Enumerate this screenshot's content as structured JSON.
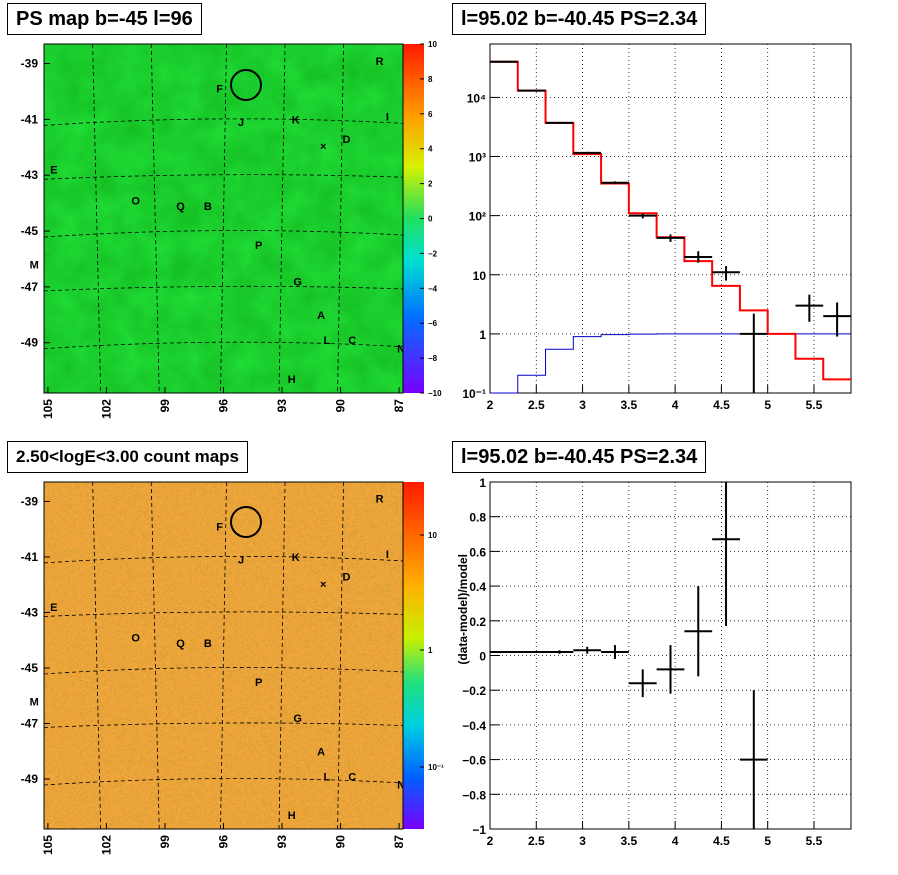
{
  "panels": {
    "top_left_title": "PS map b=-45 l=96",
    "top_right_title": "l=95.02 b=-40.45 PS=2.34",
    "bottom_left_title": "2.50<logE<3.00 count maps",
    "bottom_right_title": "l=95.02 b=-40.45 PS=2.34"
  },
  "map": {
    "y_ticks": [
      "-39",
      "-41",
      "-43",
      "-45",
      "-47",
      "-49"
    ],
    "x_ticks": [
      "105",
      "102",
      "99",
      "96",
      "93",
      "90",
      "87"
    ],
    "sources": [
      {
        "label": "R",
        "l": 88.0,
        "b": -38.9
      },
      {
        "label": "F",
        "l": 96.2,
        "b": -39.9
      },
      {
        "label": "J",
        "l": 95.1,
        "b": -41.1
      },
      {
        "label": "K",
        "l": 92.3,
        "b": -41.0
      },
      {
        "label": "I",
        "l": 87.6,
        "b": -40.9
      },
      {
        "label": "D",
        "l": 89.7,
        "b": -41.7
      },
      {
        "label": "E",
        "l": 104.7,
        "b": -42.8
      },
      {
        "label": "O",
        "l": 100.5,
        "b": -43.9
      },
      {
        "label": "Q",
        "l": 98.2,
        "b": -44.1
      },
      {
        "label": "B",
        "l": 96.8,
        "b": -44.1
      },
      {
        "label": "P",
        "l": 94.2,
        "b": -45.5
      },
      {
        "label": "M",
        "l": 105.7,
        "b": -46.2
      },
      {
        "label": "G",
        "l": 92.2,
        "b": -46.8
      },
      {
        "label": "A",
        "l": 91.0,
        "b": -48.0
      },
      {
        "label": "L",
        "l": 90.7,
        "b": -48.9
      },
      {
        "label": "C",
        "l": 89.4,
        "b": -48.9
      },
      {
        "label": "N",
        "l": 86.9,
        "b": -49.2
      },
      {
        "label": "H",
        "l": 92.5,
        "b": -50.3
      }
    ],
    "ps_colorbar_ticks": [
      "10",
      "8",
      "6",
      "4",
      "2",
      "0",
      "−2",
      "−4",
      "−6",
      "−8",
      "−10"
    ],
    "count_colorbar_ticks": [
      "10",
      "1",
      "10⁻¹"
    ],
    "ps_map_color": "#22e23a",
    "count_map_color": "#f5a83a"
  },
  "chart_data": [
    {
      "type": "line",
      "panel": "spectrum",
      "log_y": true,
      "xlim": [
        2,
        5.9
      ],
      "ylim": [
        0.1,
        80000
      ],
      "x_ticks": [
        "2",
        "2.5",
        "3",
        "3.5",
        "4",
        "4.5",
        "5",
        "5.5"
      ],
      "y_ticks": [
        "10⁻¹",
        "1",
        "10",
        "10²",
        "10³",
        "10⁴"
      ],
      "model_color": "#ff0000",
      "background_color": "#0000cc",
      "data_color": "#000000",
      "bin_edges": [
        2.0,
        2.3,
        2.6,
        2.9,
        3.2,
        3.5,
        3.8,
        4.1,
        4.4,
        4.7,
        5.0,
        5.3,
        5.6,
        5.9
      ],
      "model_values": [
        40000,
        13000,
        3700,
        1100,
        350,
        110,
        43,
        17,
        6.5,
        2.5,
        1.0,
        0.38,
        0.17
      ],
      "background_values": [
        0.1,
        0.2,
        0.55,
        0.9,
        0.97,
        0.99,
        1.0,
        1.0,
        1.0,
        1.0,
        1.0,
        1.0,
        1.0
      ],
      "data_points": [
        {
          "x": 2.15,
          "y": 40000,
          "lo": 39500,
          "hi": 40500
        },
        {
          "x": 2.45,
          "y": 13000,
          "lo": 12800,
          "hi": 13200
        },
        {
          "x": 2.75,
          "y": 3700,
          "lo": 3600,
          "hi": 3800
        },
        {
          "x": 3.05,
          "y": 1150,
          "lo": 1100,
          "hi": 1200
        },
        {
          "x": 3.35,
          "y": 360,
          "lo": 340,
          "hi": 380
        },
        {
          "x": 3.65,
          "y": 100,
          "lo": 90,
          "hi": 110
        },
        {
          "x": 3.95,
          "y": 42,
          "lo": 36,
          "hi": 48
        },
        {
          "x": 4.25,
          "y": 20,
          "lo": 16,
          "hi": 25
        },
        {
          "x": 4.55,
          "y": 11,
          "lo": 8,
          "hi": 14
        },
        {
          "x": 4.85,
          "y": 1,
          "lo": 0.1,
          "hi": 2.2
        },
        {
          "x": 5.45,
          "y": 3,
          "lo": 1.6,
          "hi": 4.6
        },
        {
          "x": 5.75,
          "y": 2,
          "lo": 0.9,
          "hi": 3.4
        }
      ]
    },
    {
      "type": "scatter",
      "panel": "residuals",
      "xlim": [
        2,
        5.9
      ],
      "ylim": [
        -1,
        1
      ],
      "ylabel": "(data-model)/model",
      "x_ticks": [
        "2",
        "2.5",
        "3",
        "3.5",
        "4",
        "4.5",
        "5",
        "5.5"
      ],
      "y_ticks": [
        "1",
        "0.8",
        "0.6",
        "0.4",
        "0.2",
        "0",
        "−0.2",
        "−0.4",
        "−0.6",
        "−0.8",
        "−1"
      ],
      "points": [
        {
          "x": 2.15,
          "y": 0.02,
          "err": 0.005
        },
        {
          "x": 2.45,
          "y": 0.02,
          "err": 0.005
        },
        {
          "x": 2.75,
          "y": 0.02,
          "err": 0.01
        },
        {
          "x": 3.05,
          "y": 0.03,
          "err": 0.02
        },
        {
          "x": 3.35,
          "y": 0.02,
          "err": 0.04
        },
        {
          "x": 3.65,
          "y": -0.16,
          "err": 0.08
        },
        {
          "x": 3.95,
          "y": -0.08,
          "err": 0.14
        },
        {
          "x": 4.25,
          "y": 0.14,
          "err": 0.26
        },
        {
          "x": 4.55,
          "y": 0.67,
          "err": 0.5
        },
        {
          "x": 4.85,
          "y": -0.6,
          "err": 0.4
        }
      ]
    }
  ]
}
